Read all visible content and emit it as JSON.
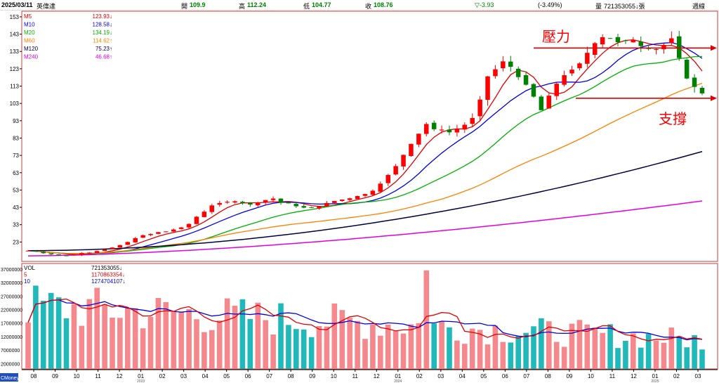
{
  "header": {
    "date": "2025/03/11",
    "name": "英偉達",
    "open_label": "開",
    "open_value": "109.9",
    "high_label": "高",
    "high_value": "112.24",
    "low_label": "低",
    "low_value": "104.77",
    "close_label": "收",
    "close_value": "108.76",
    "change": "▽-3.93",
    "change_pct": "(-3.49%)",
    "volume_label": "量",
    "volume_value": "721353055↓張",
    "period": "週線"
  },
  "chart_data": [
    {
      "type": "candlestick",
      "name": "price",
      "y_ticks": [
        "153",
        "143",
        "133",
        "123",
        "113",
        "103",
        "93",
        "83",
        "73",
        "63",
        "53",
        "43",
        "33",
        "23"
      ],
      "ylim": [
        13,
        155
      ],
      "x_ticks": [
        "08",
        "09",
        "10",
        "11",
        "12",
        "01",
        "02",
        "03",
        "04",
        "05",
        "06",
        "07",
        "08",
        "09",
        "10",
        "11",
        "12",
        "01",
        "02",
        "03",
        "04",
        "05",
        "06",
        "07",
        "08",
        "09",
        "10",
        "11",
        "12",
        "01",
        "02",
        "03"
      ],
      "year_labels": [
        "2023",
        "2024",
        "2025"
      ],
      "close_prices": [
        18,
        17.5,
        16.5,
        15.8,
        15.4,
        15.2,
        15.7,
        16.6,
        16.9,
        17.8,
        18.7,
        19.8,
        21.2,
        23,
        25.2,
        26.9,
        27.6,
        28.7,
        29.1,
        30.2,
        31.4,
        33.4,
        37.6,
        40.5,
        44.1,
        45.5,
        46.2,
        46.5,
        45.4,
        44.6,
        45.7,
        47.2,
        48.1,
        45.6,
        45.3,
        43.6,
        42.8,
        42.7,
        43.4,
        45.5,
        46.7,
        47.5,
        48.2,
        49.5,
        50.7,
        52.6,
        56.7,
        61.7,
        66.8,
        73.3,
        79.6,
        85.5,
        91.1,
        88.1,
        87.9,
        86.3,
        88.1,
        90.7,
        94.6,
        105.2,
        118.6,
        122.7,
        127.3,
        124.1,
        118.2,
        113.8,
        106.9,
        99.1,
        107.5,
        114.4,
        119.3,
        122.5,
        126.1,
        132.2,
        137.8,
        141.2,
        140.6,
        138.3,
        139,
        139.7,
        136.1,
        134.7,
        134.3,
        136.8,
        140.6,
        129.2,
        117.4,
        112.5,
        108.8
      ],
      "indicators": [
        {
          "name": "M5",
          "value": "123.93",
          "arrow": "↓",
          "color": "#e00000"
        },
        {
          "name": "M10",
          "value": "128.58",
          "arrow": "↓",
          "color": "#0000e0"
        },
        {
          "name": "M20",
          "value": "134.19",
          "arrow": "↓",
          "color": "#00b000"
        },
        {
          "name": "M60",
          "value": "114.62",
          "arrow": "↑",
          "color": "#ff8000"
        },
        {
          "name": "M120",
          "value": "75.23",
          "arrow": "↑",
          "color": "#000040"
        },
        {
          "name": "M240",
          "value": "46.68",
          "arrow": "↑",
          "color": "#e000e0"
        }
      ],
      "ma_end_values": {
        "M5": 123.93,
        "M10": 128.58,
        "M20": 134.19,
        "M60": 114.62,
        "M120": 75.23,
        "M240": 46.68
      },
      "annotations": [
        {
          "text": "壓力",
          "price": 135
        },
        {
          "text": "支撐",
          "price": 106
        }
      ],
      "colors": {
        "up": "#ff0000",
        "down": "#008000",
        "resistance_text": "#ff0000",
        "support_text": "#ff0000"
      }
    },
    {
      "type": "bar",
      "name": "volume",
      "y_ticks": [
        "37000000",
        "32000000",
        "27000000",
        "22000000",
        "17000000",
        "12000000",
        "7000000",
        "2000000"
      ],
      "ylim": [
        0,
        38000000
      ],
      "indicators": [
        {
          "name": "VOL",
          "value": "721353055",
          "arrow": "↓",
          "color": "#000000"
        },
        {
          "name": "5",
          "value": "1170863354",
          "arrow": "↓",
          "color": "#e00000"
        },
        {
          "name": "10",
          "value": "1274704107",
          "arrow": "↓",
          "color": "#0000e0"
        }
      ],
      "colors": {
        "up": "#f4888c",
        "down": "#20b8b8",
        "ma5": "#e00000",
        "ma10": "#0000e0"
      }
    }
  ],
  "footer": {
    "brand": "CMoney"
  }
}
